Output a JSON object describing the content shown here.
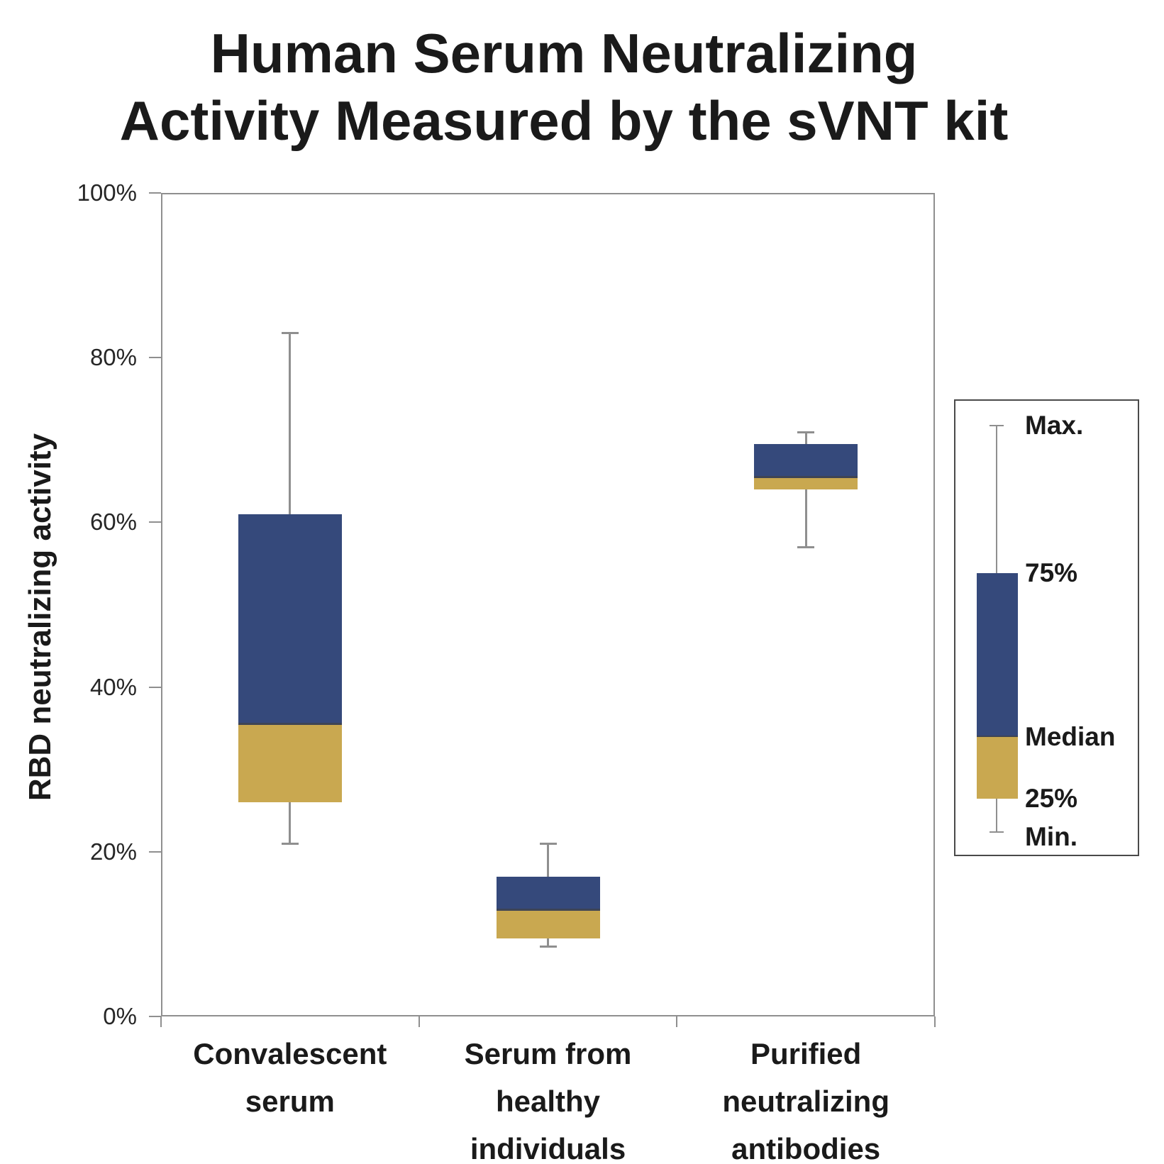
{
  "colors": {
    "box_upper": "#35497B",
    "box_lower": "#C9A850",
    "median_line": "#3E4455",
    "whisker": "#8F8F8F",
    "axis": "#8F8F8F",
    "legend_border": "#4A4A4A",
    "text": "#1A1A1A"
  },
  "y_axis": {
    "ticks": [
      {
        "value": 100,
        "label": "100%"
      },
      {
        "value": 80,
        "label": "80%"
      },
      {
        "value": 60,
        "label": "60%"
      },
      {
        "value": 40,
        "label": "40%"
      },
      {
        "value": 20,
        "label": "20%"
      },
      {
        "value": 0,
        "label": "0%"
      }
    ]
  },
  "chart_data": {
    "type": "boxplot",
    "title": "Human Serum Neutralizing Activity Measured by the sVNT kit",
    "title_lines": [
      "Human Serum Neutralizing",
      "Activity Measured by the sVNT kit"
    ],
    "xlabel": "",
    "ylabel": "RBD neutralizing activity",
    "ylim": [
      0,
      100
    ],
    "y_tick_format": "percent",
    "grid": false,
    "categories": [
      "Convalescent serum",
      "Serum from healthy individuals",
      "Purified neutralizing antibodies"
    ],
    "boxes": [
      {
        "category": "Convalescent serum",
        "min": 21,
        "q1": 26,
        "median": 35.5,
        "q3": 61,
        "max": 83
      },
      {
        "category": "Serum from healthy individuals",
        "min": 8.5,
        "q1": 9.5,
        "median": 13,
        "q3": 17,
        "max": 21
      },
      {
        "category": "Purified neutralizing antibodies",
        "min": 57,
        "q1": 64,
        "median": 65.5,
        "q3": 69.5,
        "max": 71
      }
    ],
    "legend": {
      "position": "right",
      "entries": [
        {
          "key": "max",
          "label": "Max."
        },
        {
          "key": "q3",
          "label": "75%"
        },
        {
          "key": "median",
          "label": "Median"
        },
        {
          "key": "q1",
          "label": "25%"
        },
        {
          "key": "min",
          "label": "Min."
        }
      ]
    }
  }
}
